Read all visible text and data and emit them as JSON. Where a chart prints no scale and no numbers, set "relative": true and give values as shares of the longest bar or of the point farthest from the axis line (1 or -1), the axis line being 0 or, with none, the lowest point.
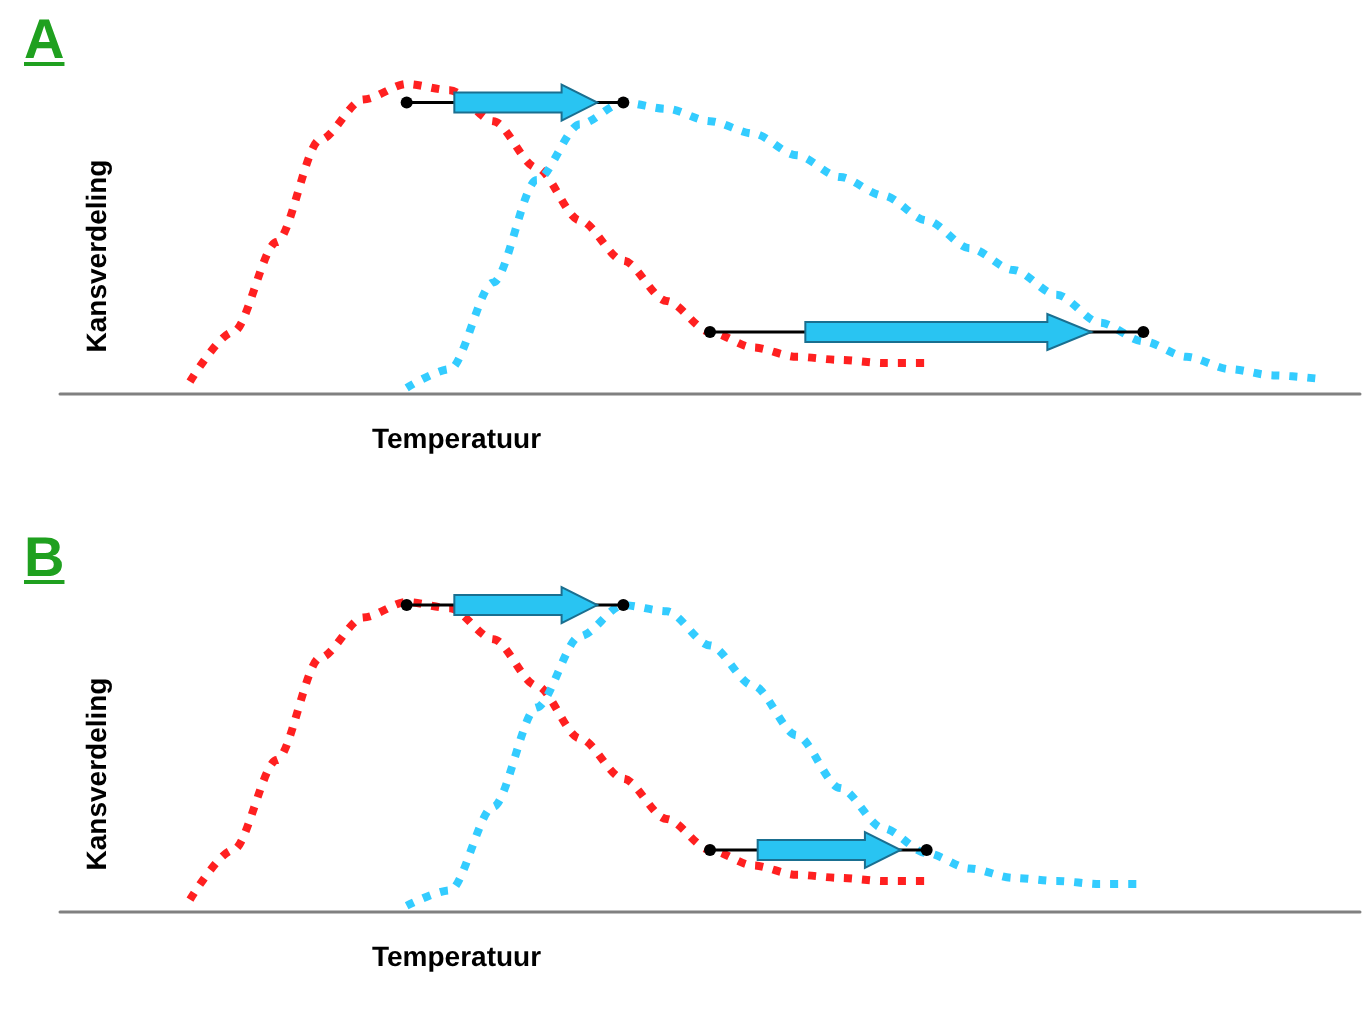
{
  "chart_data": [
    {
      "type": "line",
      "title": "A",
      "xlabel": "Temperatuur",
      "ylabel": "Kansverdeling",
      "relative": true,
      "tick_labels": false,
      "line_style": "dotted",
      "marker": "none",
      "categories": [
        null,
        null,
        null,
        null,
        null,
        null,
        null,
        null,
        null,
        null,
        null,
        null,
        null,
        null,
        null,
        null,
        null,
        null,
        null,
        null,
        null,
        null,
        null,
        null,
        null,
        null,
        null,
        null,
        null,
        null,
        null
      ],
      "series": [
        {
          "color": "#ff2020",
          "values": [
            null,
            null,
            null,
            0.04,
            0.2,
            0.49,
            0.82,
            0.95,
            1,
            0.98,
            0.88,
            0.73,
            0.56,
            0.43,
            0.3,
            0.2,
            0.15,
            0.12,
            0.11,
            0.1,
            0.1,
            null,
            null,
            null,
            null,
            null,
            null,
            null,
            null,
            null,
            null
          ]
        },
        {
          "color": "#33ccff",
          "values": [
            null,
            null,
            null,
            null,
            null,
            null,
            null,
            null,
            0.02,
            0.08,
            0.36,
            0.69,
            0.87,
            0.94,
            0.92,
            0.88,
            0.84,
            0.77,
            0.7,
            0.64,
            0.56,
            0.47,
            0.4,
            0.32,
            0.23,
            0.17,
            0.12,
            0.08,
            0.06,
            0.05,
            null
          ]
        }
      ]
    },
    {
      "type": "line",
      "title": "B",
      "xlabel": "Temperatuur",
      "ylabel": "Kansverdeling",
      "relative": true,
      "tick_labels": false,
      "line_style": "dotted",
      "marker": "none",
      "categories": [
        null,
        null,
        null,
        null,
        null,
        null,
        null,
        null,
        null,
        null,
        null,
        null,
        null,
        null,
        null,
        null,
        null,
        null,
        null,
        null,
        null,
        null,
        null,
        null,
        null,
        null,
        null,
        null,
        null,
        null,
        null
      ],
      "series": [
        {
          "color": "#ff2020",
          "values": [
            null,
            null,
            null,
            0.04,
            0.2,
            0.49,
            0.82,
            0.95,
            1,
            0.98,
            0.88,
            0.73,
            0.56,
            0.43,
            0.3,
            0.2,
            0.15,
            0.12,
            0.11,
            0.1,
            0.1,
            null,
            null,
            null,
            null,
            null,
            null,
            null,
            null,
            null,
            null
          ]
        },
        {
          "color": "#33ccff",
          "values": [
            null,
            null,
            null,
            null,
            null,
            null,
            null,
            null,
            0.02,
            0.07,
            0.34,
            0.66,
            0.89,
            0.99,
            0.97,
            0.86,
            0.73,
            0.57,
            0.4,
            0.27,
            0.19,
            0.14,
            0.11,
            0.1,
            0.09,
            0.09,
            null,
            null,
            null,
            null,
            null
          ]
        }
      ]
    }
  ]
}
